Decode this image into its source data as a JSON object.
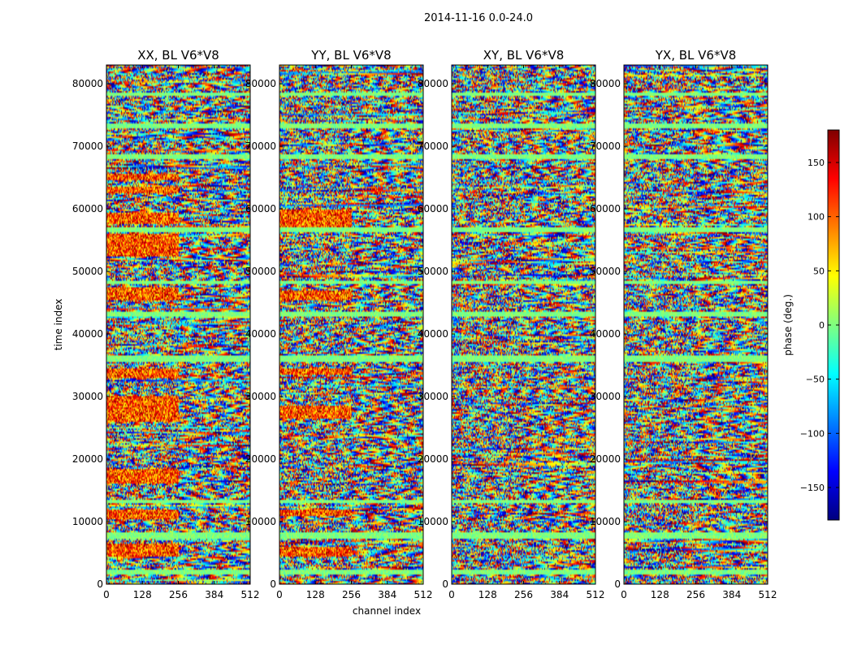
{
  "suptitle": "2014-11-16 0.0-24.0",
  "chart_data": [
    {
      "type": "heatmap",
      "title": "XX, BL V6*V8",
      "xlabel": "",
      "ylabel": "time index",
      "xlim": [
        0,
        512
      ],
      "ylim": [
        0,
        83000
      ],
      "xticks": [
        0,
        128,
        256,
        384,
        512
      ],
      "yticks": [
        0,
        10000,
        20000,
        30000,
        40000,
        50000,
        60000,
        70000,
        80000
      ],
      "cmap": "jet",
      "clim": [
        -180,
        180
      ],
      "hot_bands": [
        [
          4500,
          6500
        ],
        [
          10500,
          12000
        ],
        [
          16000,
          18500
        ],
        [
          26000,
          30000
        ],
        [
          33000,
          34500
        ],
        [
          45500,
          47500
        ],
        [
          52500,
          56000
        ],
        [
          57500,
          59500
        ],
        [
          62500,
          63500
        ],
        [
          64500,
          65500
        ]
      ]
    },
    {
      "type": "heatmap",
      "title": "YY, BL V6*V8",
      "xlabel": "channel index",
      "ylabel": "",
      "xlim": [
        0,
        512
      ],
      "ylim": [
        0,
        83000
      ],
      "xticks": [
        0,
        128,
        256,
        384,
        512
      ],
      "yticks": [
        0,
        10000,
        20000,
        30000,
        40000,
        50000,
        60000,
        70000,
        80000
      ],
      "cmap": "jet",
      "clim": [
        -180,
        180
      ],
      "hot_bands": [
        [
          4500,
          6000
        ],
        [
          11000,
          12000
        ],
        [
          26500,
          28500
        ],
        [
          33500,
          34500
        ],
        [
          45500,
          47000
        ],
        [
          56500,
          60000
        ]
      ]
    },
    {
      "type": "heatmap",
      "title": "XY, BL V6*V8",
      "xlabel": "",
      "ylabel": "",
      "xlim": [
        0,
        512
      ],
      "ylim": [
        0,
        83000
      ],
      "xticks": [
        0,
        128,
        256,
        384,
        512
      ],
      "yticks": [
        0,
        10000,
        20000,
        30000,
        40000,
        50000,
        60000,
        70000,
        80000
      ],
      "cmap": "jet",
      "clim": [
        -180,
        180
      ],
      "hot_bands": []
    },
    {
      "type": "heatmap",
      "title": "YX, BL V6*V8",
      "xlabel": "",
      "ylabel": "",
      "xlim": [
        0,
        512
      ],
      "ylim": [
        0,
        83000
      ],
      "xticks": [
        0,
        128,
        256,
        384,
        512
      ],
      "yticks": [
        0,
        10000,
        20000,
        30000,
        40000,
        50000,
        60000,
        70000,
        80000
      ],
      "cmap": "jet",
      "clim": [
        -180,
        180
      ],
      "hot_bands": []
    }
  ],
  "flat_bands": [
    [
      1500,
      2300
    ],
    [
      7200,
      8300
    ],
    [
      13000,
      13600
    ],
    [
      35500,
      36500
    ],
    [
      42800,
      43600
    ],
    [
      48000,
      48600
    ],
    [
      56300,
      57100
    ],
    [
      68000,
      68800
    ],
    [
      73000,
      73700
    ],
    [
      78000,
      78600
    ]
  ],
  "colorbar": {
    "label": "phase (deg.)",
    "ticks": [
      -150,
      -100,
      -50,
      0,
      50,
      100,
      150
    ],
    "range": [
      -180,
      180
    ],
    "cmap": "jet"
  }
}
